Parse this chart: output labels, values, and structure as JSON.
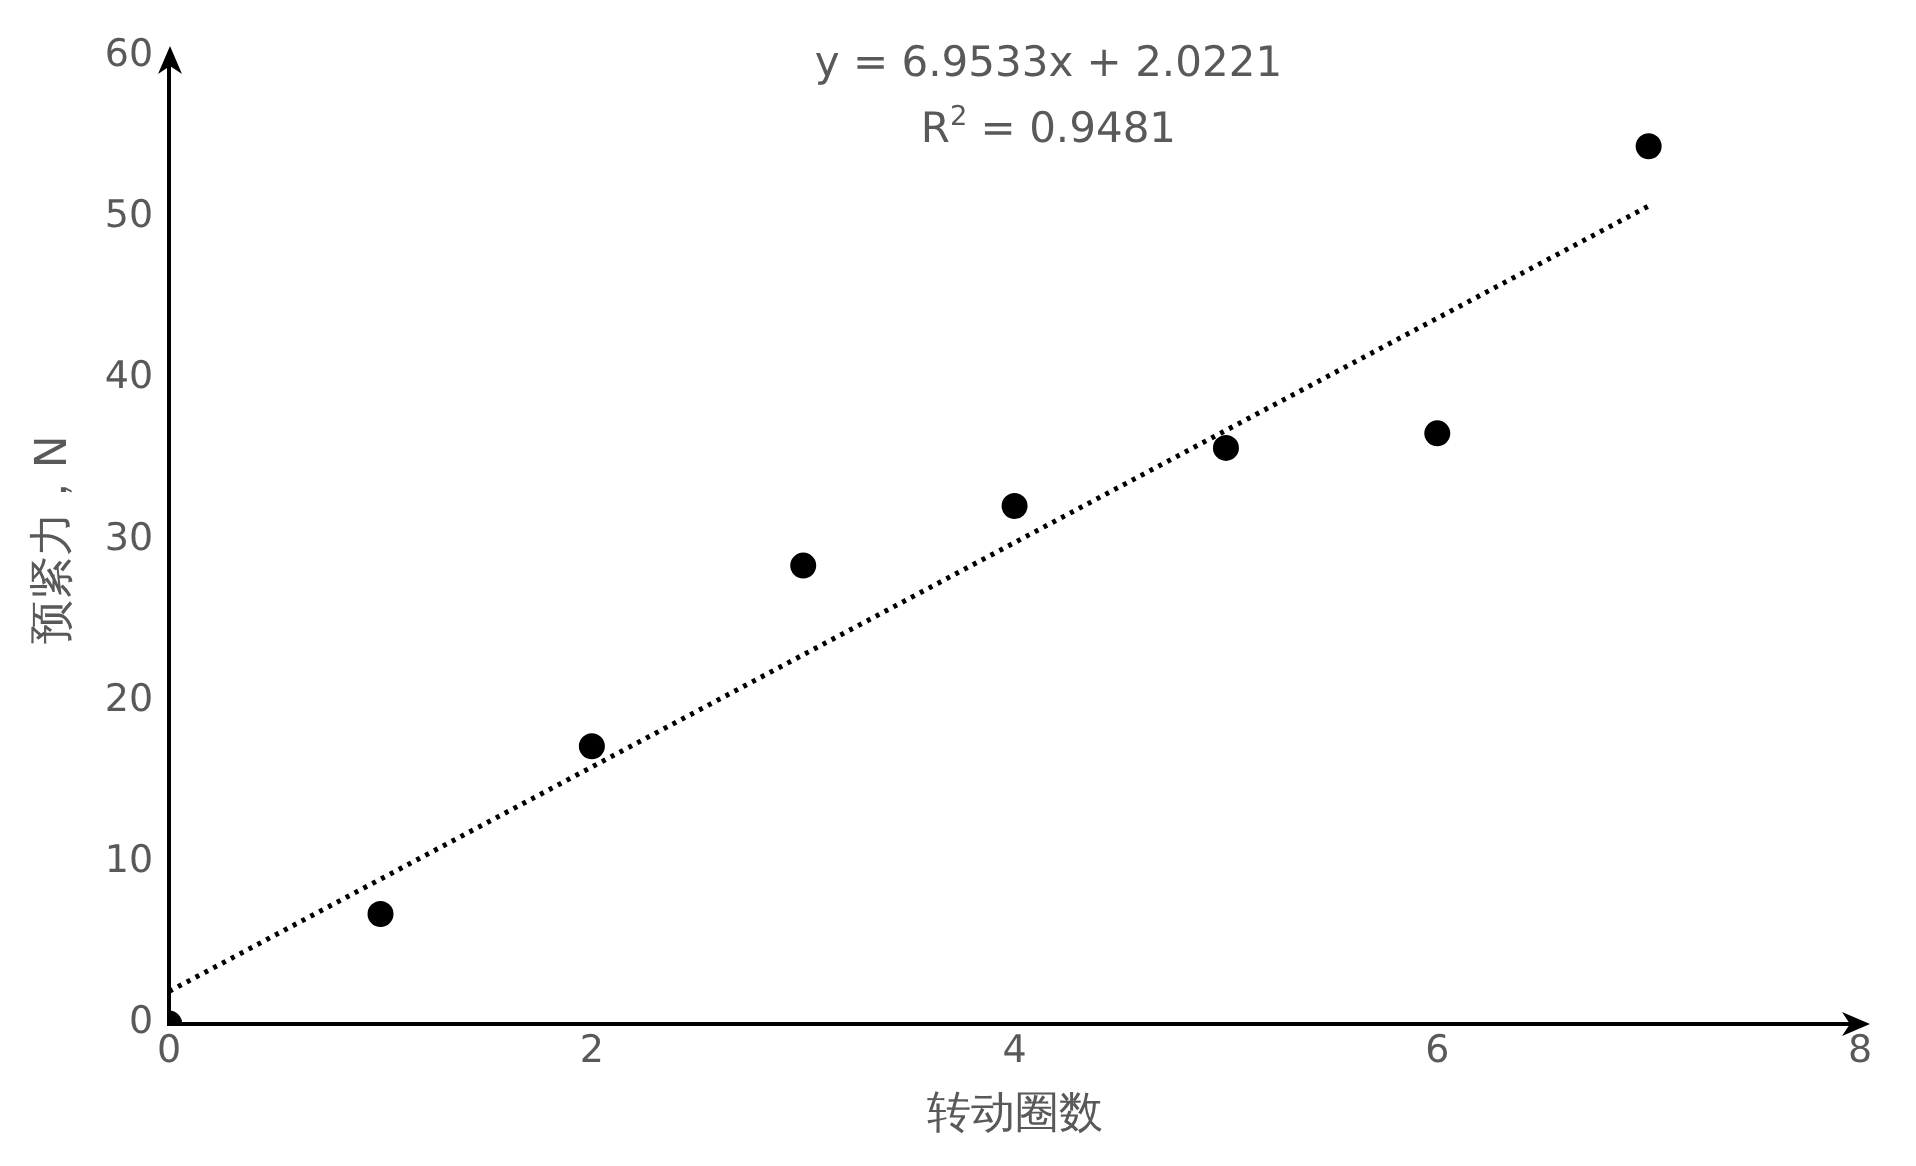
{
  "chart_data": {
    "type": "scatter",
    "xlabel": "转动圈数",
    "ylabel": "预紧力，N",
    "xlim": [
      0,
      8
    ],
    "ylim": [
      0,
      60
    ],
    "xticks": [
      0,
      2,
      4,
      6,
      8
    ],
    "yticks": [
      0,
      10,
      20,
      30,
      40,
      50,
      60
    ],
    "grid": false,
    "legend": false,
    "marker": "circle",
    "annotations": [
      "y = 6.9533x + 2.0221",
      "R$^{2}$ = 0.9481"
    ],
    "series": [
      {
        "color": "#000000",
        "x": [
          0,
          1,
          2,
          3,
          4,
          5,
          6,
          7
        ],
        "values": [
          0,
          6.8,
          17.2,
          28.4,
          32.1,
          35.7,
          36.6,
          54.4
        ]
      },
      {
        "type": "line",
        "color": "#000000",
        "line_style": "dotted",
        "marker": "none",
        "x": [
          0,
          7
        ],
        "values": [
          2.0,
          50.7
        ]
      }
    ]
  }
}
